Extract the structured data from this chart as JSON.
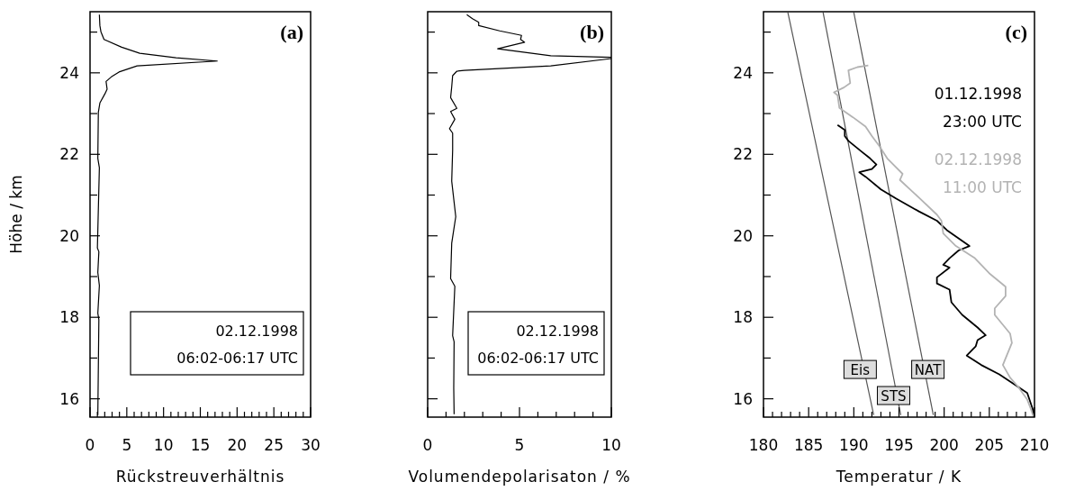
{
  "chart_data": [
    {
      "type": "line",
      "xlabel": "Rückstreuverhältnis",
      "ylabel": "Höhe / km",
      "annotations": [
        "(a)",
        "02.12.1998\n06:02-06:17 UTC"
      ],
      "xlim": [
        0,
        30
      ],
      "ylim": [
        15.55,
        25.5
      ],
      "xticks": [
        0,
        {
          "value": 1,
          "label": null
        },
        {
          "value": 2,
          "label": null
        },
        {
          "value": 3,
          "label": null
        },
        {
          "value": 4,
          "label": null
        },
        5,
        {
          "value": 6,
          "label": null
        },
        {
          "value": 7,
          "label": null
        },
        {
          "value": 8,
          "label": null
        },
        {
          "value": 9,
          "label": null
        },
        10,
        {
          "value": 11,
          "label": null
        },
        {
          "value": 12,
          "label": null
        },
        {
          "value": 13,
          "label": null
        },
        {
          "value": 14,
          "label": null
        },
        15,
        {
          "value": 16,
          "label": null
        },
        {
          "value": 17,
          "label": null
        },
        {
          "value": 18,
          "label": null
        },
        {
          "value": 19,
          "label": null
        },
        20,
        {
          "value": 21,
          "label": null
        },
        {
          "value": 22,
          "label": null
        },
        {
          "value": 23,
          "label": null
        },
        {
          "value": 24,
          "label": null
        },
        25,
        {
          "value": 26,
          "label": null
        },
        {
          "value": 27,
          "label": null
        },
        {
          "value": 28,
          "label": null
        },
        {
          "value": 29,
          "label": null
        },
        30
      ],
      "yticks": [
        16,
        {
          "value": 17,
          "label": null
        },
        18,
        {
          "value": 19,
          "label": null
        },
        20,
        {
          "value": 21,
          "label": null
        },
        22,
        {
          "value": 23,
          "label": null
        },
        24,
        {
          "value": 25,
          "label": null
        }
      ],
      "series": [
        {
          "color": "#000000",
          "x": [
            1.06,
            1.2,
            1.06,
            1.27,
            1.06,
            1.2,
            1.0,
            1.27,
            1.06,
            1.13,
            1.34,
            2.04,
            2.32,
            2.18,
            2.9,
            3.94,
            6.4,
            17.3,
            11.7,
            6.76,
            4.3,
            1.9,
            1.48,
            1.34,
            1.27
          ],
          "values": [
            15.6,
            17.94,
            18.1,
            18.78,
            19.1,
            19.61,
            19.7,
            21.67,
            21.9,
            23.03,
            23.26,
            23.49,
            23.6,
            23.79,
            23.9,
            24.02,
            24.17,
            24.29,
            24.37,
            24.48,
            24.63,
            24.82,
            25.01,
            25.16,
            25.43
          ]
        }
      ]
    },
    {
      "type": "line",
      "xlabel": "Volumendepolarisaton / %",
      "annotations": [
        "(b)",
        "02.12.1998\n06:02-06:17 UTC"
      ],
      "tick_labels": "x",
      "xlim": [
        0,
        10
      ],
      "ylim": [
        15.55,
        25.5
      ],
      "xticks": [
        0,
        {
          "value": 1,
          "label": null
        },
        {
          "value": 2,
          "label": null
        },
        {
          "value": 3,
          "label": null
        },
        {
          "value": 4,
          "label": null
        },
        5,
        {
          "value": 6,
          "label": null
        },
        {
          "value": 7,
          "label": null
        },
        {
          "value": 8,
          "label": null
        },
        {
          "value": 9,
          "label": null
        },
        10
      ],
      "yticks": [
        16,
        {
          "value": 17,
          "label": null
        },
        18,
        {
          "value": 19,
          "label": null
        },
        20,
        {
          "value": 21,
          "label": null
        },
        22,
        {
          "value": 23,
          "label": null
        },
        24,
        {
          "value": 25,
          "label": null
        }
      ],
      "series": [
        {
          "color": "#000000",
          "x": [
            1.44,
            1.42,
            1.44,
            1.36,
            1.48,
            1.25,
            1.31,
            1.53,
            1.31,
            1.36,
            1.36,
            1.19,
            1.48,
            1.25,
            1.59,
            1.25,
            1.31,
            1.36,
            1.59,
            1.99,
            6.7,
            10,
            10,
            6.7,
            3.81,
            5.28,
            5.06,
            5.11,
            3.92,
            2.78,
            2.78,
            2.44,
            2.13
          ],
          "values": [
            15.62,
            16.27,
            17.4,
            17.55,
            18.76,
            18.95,
            19.82,
            20.47,
            21.34,
            22.1,
            22.52,
            22.63,
            22.86,
            23.05,
            23.13,
            23.39,
            23.66,
            23.93,
            24.04,
            24.06,
            24.17,
            24.35,
            24.38,
            24.42,
            24.59,
            24.75,
            24.82,
            24.92,
            25.03,
            25.16,
            25.24,
            25.33,
            25.43
          ]
        }
      ]
    },
    {
      "type": "line",
      "xlabel": "Temperatur / K",
      "annotations": [
        "(c)",
        {
          "text": "Eis",
          "x": 190.7,
          "y": 16.72
        },
        {
          "text": "STS",
          "x": 194.4,
          "y": 16.08
        },
        {
          "text": "NAT",
          "x": 198.2,
          "y": 16.72
        }
      ],
      "xlim": [
        180,
        210
      ],
      "ylim": [
        15.55,
        25.5
      ],
      "xticks": [
        180,
        {
          "value": 181,
          "label": null
        },
        {
          "value": 182,
          "label": null
        },
        {
          "value": 183,
          "label": null
        },
        {
          "value": 184,
          "label": null
        },
        185,
        {
          "value": 186,
          "label": null
        },
        {
          "value": 187,
          "label": null
        },
        {
          "value": 188,
          "label": null
        },
        {
          "value": 189,
          "label": null
        },
        190,
        {
          "value": 191,
          "label": null
        },
        {
          "value": 192,
          "label": null
        },
        {
          "value": 193,
          "label": null
        },
        {
          "value": 194,
          "label": null
        },
        195,
        {
          "value": 196,
          "label": null
        },
        {
          "value": 197,
          "label": null
        },
        {
          "value": 198,
          "label": null
        },
        {
          "value": 199,
          "label": null
        },
        200,
        {
          "value": 201,
          "label": null
        },
        {
          "value": 202,
          "label": null
        },
        {
          "value": 203,
          "label": null
        },
        {
          "value": 204,
          "label": null
        },
        205,
        {
          "value": 206,
          "label": null
        },
        {
          "value": 207,
          "label": null
        },
        {
          "value": 208,
          "label": null
        },
        {
          "value": 209,
          "label": null
        },
        210
      ],
      "yticks": [
        16,
        {
          "value": 17,
          "label": null
        },
        18,
        {
          "value": 19,
          "label": null
        },
        20,
        {
          "value": 21,
          "label": null
        },
        22,
        {
          "value": 23,
          "label": null
        },
        24,
        {
          "value": 25,
          "label": null
        }
      ],
      "series": [
        {
          "color": "#555555",
          "x": [
            182.7,
            192.2
          ],
          "values": [
            25.48,
            15.6
          ]
        },
        {
          "color": "#555555",
          "x": [
            186.6,
            195.2
          ],
          "values": [
            25.48,
            15.6
          ]
        },
        {
          "color": "#555555",
          "x": [
            190.0,
            198.8
          ],
          "values": [
            25.48,
            15.6
          ]
        },
        {
          "name": "01.12.1998\n23:00 UTC",
          "color": "#000000",
          "x": [
            209.9,
            209.8,
            209.2,
            208.2,
            206.1,
            204.1,
            202.5,
            203.5,
            203.7,
            204.6,
            203.7,
            202.0,
            200.8,
            200.6,
            199.2,
            199.2,
            200.6,
            199.9,
            200.6,
            201.6,
            202.8,
            202.3,
            200.3,
            199.2,
            197.2,
            194.7,
            193.0,
            191.3,
            190.6,
            192.0,
            192.5,
            191.8,
            190.9,
            189.4,
            189.0,
            189.0,
            188.2
          ],
          "values": [
            15.6,
            15.75,
            16.14,
            16.29,
            16.6,
            16.83,
            17.06,
            17.29,
            17.44,
            17.56,
            17.75,
            18.06,
            18.37,
            18.68,
            18.83,
            18.98,
            19.22,
            19.29,
            19.45,
            19.64,
            19.75,
            19.83,
            20.14,
            20.37,
            20.6,
            20.91,
            21.14,
            21.45,
            21.56,
            21.64,
            21.75,
            21.9,
            22.06,
            22.33,
            22.45,
            22.6,
            22.72
          ]
        },
        {
          "name": "02.12.1998\n11:00 UTC",
          "color": "#b3b3b3",
          "x": [
            209.9,
            209.6,
            209.2,
            208.2,
            207.3,
            206.5,
            207.5,
            207.3,
            205.6,
            205.6,
            206.8,
            206.8,
            205.1,
            203.4,
            201.3,
            199.9,
            199.7,
            199.2,
            197.0,
            195.1,
            195.4,
            193.7,
            192.8,
            192.0,
            191.3,
            189.9,
            188.4,
            188.2,
            187.8,
            188.9,
            189.6,
            189.4,
            190.4,
            191.6
          ],
          "values": [
            15.55,
            15.75,
            15.98,
            16.29,
            16.52,
            16.83,
            17.37,
            17.6,
            18.06,
            18.22,
            18.52,
            18.75,
            19.06,
            19.45,
            19.75,
            20.06,
            20.37,
            20.52,
            20.98,
            21.37,
            21.52,
            21.9,
            22.21,
            22.45,
            22.68,
            22.91,
            23.14,
            23.45,
            23.52,
            23.64,
            23.75,
            24.06,
            24.14,
            24.18
          ]
        }
      ]
    }
  ]
}
